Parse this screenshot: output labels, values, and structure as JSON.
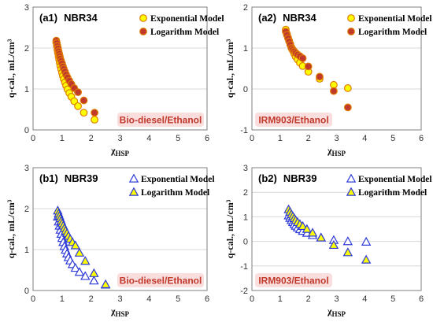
{
  "chart_data": [
    {
      "panel_label": "(a1)",
      "panel_name": "NBR34",
      "type": "scatter",
      "xlabel_main": "χ",
      "xlabel_sub": "HSP",
      "ylabel": "q-cal., mL/cm³",
      "xlim": [
        0,
        6
      ],
      "ylim": [
        0,
        3
      ],
      "xticks": [
        "0",
        "1",
        "2",
        "3",
        "4",
        "5",
        "6"
      ],
      "yticks": [
        "0",
        "1",
        "2",
        "3"
      ],
      "grid": "horizontal",
      "annotation": "Bio-diesel/Ethanol",
      "series": [
        {
          "name": "Exponential Model",
          "marker": "circle",
          "fill": "#ffff00",
          "stroke": "#e07b00",
          "x": [
            0.8,
            0.82,
            0.84,
            0.86,
            0.88,
            0.9,
            0.92,
            0.94,
            0.97,
            1.0,
            1.03,
            1.06,
            1.1,
            1.14,
            1.19,
            1.25,
            1.32,
            1.42,
            1.55,
            1.75,
            2.12
          ],
          "y": [
            2.13,
            2.05,
            1.96,
            1.88,
            1.8,
            1.72,
            1.64,
            1.56,
            1.48,
            1.4,
            1.32,
            1.24,
            1.16,
            1.08,
            0.99,
            0.9,
            0.81,
            0.7,
            0.58,
            0.42,
            0.25
          ]
        },
        {
          "name": "Logarithm Model",
          "marker": "circle",
          "fill": "#c0392b",
          "stroke": "#e07b00",
          "x": [
            0.8,
            0.82,
            0.84,
            0.86,
            0.88,
            0.9,
            0.92,
            0.94,
            0.97,
            1.0,
            1.03,
            1.06,
            1.1,
            1.14,
            1.19,
            1.25,
            1.32,
            1.42,
            1.55,
            1.75,
            2.12
          ],
          "y": [
            2.18,
            2.12,
            2.05,
            1.99,
            1.92,
            1.86,
            1.8,
            1.74,
            1.68,
            1.62,
            1.55,
            1.49,
            1.42,
            1.35,
            1.28,
            1.2,
            1.12,
            1.02,
            0.92,
            0.72,
            0.42
          ]
        }
      ]
    },
    {
      "panel_label": "(a2)",
      "panel_name": "NBR34",
      "type": "scatter",
      "xlabel_main": "χ",
      "xlabel_sub": "HSP",
      "ylabel": "q-cal., mL/cm³",
      "xlim": [
        0,
        6
      ],
      "ylim": [
        -1,
        2
      ],
      "xticks": [
        "0",
        "1",
        "2",
        "3",
        "4",
        "5",
        "6"
      ],
      "yticks": [
        "-1",
        "0",
        "1",
        "2"
      ],
      "grid": "horizontal",
      "annotation": "IRM903/Ethanol",
      "series": [
        {
          "name": "Exponential Model",
          "marker": "circle",
          "fill": "#ffff00",
          "stroke": "#e07b00",
          "x": [
            1.2,
            1.24,
            1.28,
            1.32,
            1.36,
            1.4,
            1.45,
            1.5,
            1.55,
            1.62,
            1.7,
            1.8,
            2.0,
            2.4,
            2.9,
            3.4
          ],
          "y": [
            1.45,
            1.35,
            1.26,
            1.18,
            1.1,
            1.02,
            0.94,
            0.86,
            0.79,
            0.72,
            0.64,
            0.56,
            0.42,
            0.25,
            0.1,
            0.02
          ]
        },
        {
          "name": "Logarithm Model",
          "marker": "circle",
          "fill": "#c0392b",
          "stroke": "#e07b00",
          "x": [
            1.2,
            1.24,
            1.28,
            1.32,
            1.36,
            1.4,
            1.45,
            1.5,
            1.55,
            1.62,
            1.7,
            1.8,
            2.0,
            2.4,
            2.9,
            3.4
          ],
          "y": [
            1.4,
            1.32,
            1.24,
            1.16,
            1.08,
            1.0,
            0.96,
            0.92,
            0.88,
            0.84,
            0.8,
            0.75,
            0.55,
            0.3,
            -0.05,
            -0.45
          ]
        }
      ]
    },
    {
      "panel_label": "(b1)",
      "panel_name": "NBR39",
      "type": "scatter",
      "xlabel_main": "χ",
      "xlabel_sub": "HSP",
      "ylabel": "q-cal., mL/cm³",
      "xlim": [
        0,
        6
      ],
      "ylim": [
        0,
        3
      ],
      "xticks": [
        "0",
        "1",
        "2",
        "3",
        "4",
        "5",
        "6"
      ],
      "yticks": [
        "0",
        "1",
        "2",
        "3"
      ],
      "grid": "horizontal",
      "annotation": "Bio-diesel/Ethanol",
      "series": [
        {
          "name": "Exponential Model",
          "marker": "triangle",
          "fill": "#ffffff",
          "stroke": "#2e3bd6",
          "x": [
            0.85,
            0.88,
            0.91,
            0.94,
            0.97,
            1.0,
            1.04,
            1.08,
            1.12,
            1.17,
            1.22,
            1.28,
            1.36,
            1.46,
            1.6,
            1.8,
            2.1,
            2.5
          ],
          "y": [
            1.8,
            1.68,
            1.58,
            1.48,
            1.38,
            1.28,
            1.18,
            1.08,
            0.99,
            0.9,
            0.81,
            0.73,
            0.64,
            0.55,
            0.45,
            0.35,
            0.24,
            0.14
          ]
        },
        {
          "name": "Logarithm Model",
          "marker": "triangle",
          "fill": "#ffff00",
          "stroke": "#2e3bd6",
          "x": [
            0.85,
            0.88,
            0.91,
            0.94,
            0.97,
            1.0,
            1.04,
            1.08,
            1.12,
            1.17,
            1.22,
            1.28,
            1.36,
            1.46,
            1.6,
            1.8,
            2.1,
            2.5
          ],
          "y": [
            1.95,
            1.88,
            1.82,
            1.76,
            1.7,
            1.64,
            1.58,
            1.52,
            1.46,
            1.4,
            1.33,
            1.26,
            1.18,
            1.1,
            0.92,
            0.72,
            0.42,
            0.15
          ]
        }
      ]
    },
    {
      "panel_label": "(b2)",
      "panel_name": "NBR39",
      "type": "scatter",
      "xlabel_main": "χ",
      "xlabel_sub": "HSP",
      "ylabel": "q-cal., mL/cm³",
      "xlim": [
        0,
        6
      ],
      "ylim": [
        -2,
        3
      ],
      "xticks": [
        "0",
        "1",
        "2",
        "3",
        "4",
        "5",
        "6"
      ],
      "yticks": [
        "-2",
        "-1",
        "0",
        "1",
        "2",
        "3"
      ],
      "grid": "horizontal",
      "annotation": "IRM903/Ethanol",
      "series": [
        {
          "name": "Exponential Model",
          "marker": "triangle",
          "fill": "#ffffff",
          "stroke": "#2e3bd6",
          "x": [
            1.3,
            1.35,
            1.4,
            1.45,
            1.5,
            1.55,
            1.62,
            1.7,
            1.8,
            1.95,
            2.15,
            2.45,
            2.9,
            3.4,
            4.05
          ],
          "y": [
            1.05,
            0.95,
            0.86,
            0.78,
            0.7,
            0.63,
            0.56,
            0.49,
            0.42,
            0.34,
            0.25,
            0.15,
            0.05,
            0.0,
            -0.02
          ]
        },
        {
          "name": "Logarithm Model",
          "marker": "triangle",
          "fill": "#ffff00",
          "stroke": "#2e3bd6",
          "x": [
            1.3,
            1.35,
            1.4,
            1.45,
            1.5,
            1.55,
            1.62,
            1.7,
            1.8,
            1.95,
            2.15,
            2.45,
            2.9,
            3.4,
            4.05
          ],
          "y": [
            1.3,
            1.2,
            1.1,
            1.02,
            0.94,
            0.86,
            0.78,
            0.7,
            0.62,
            0.5,
            0.35,
            0.15,
            -0.15,
            -0.45,
            -0.75
          ]
        }
      ]
    }
  ]
}
